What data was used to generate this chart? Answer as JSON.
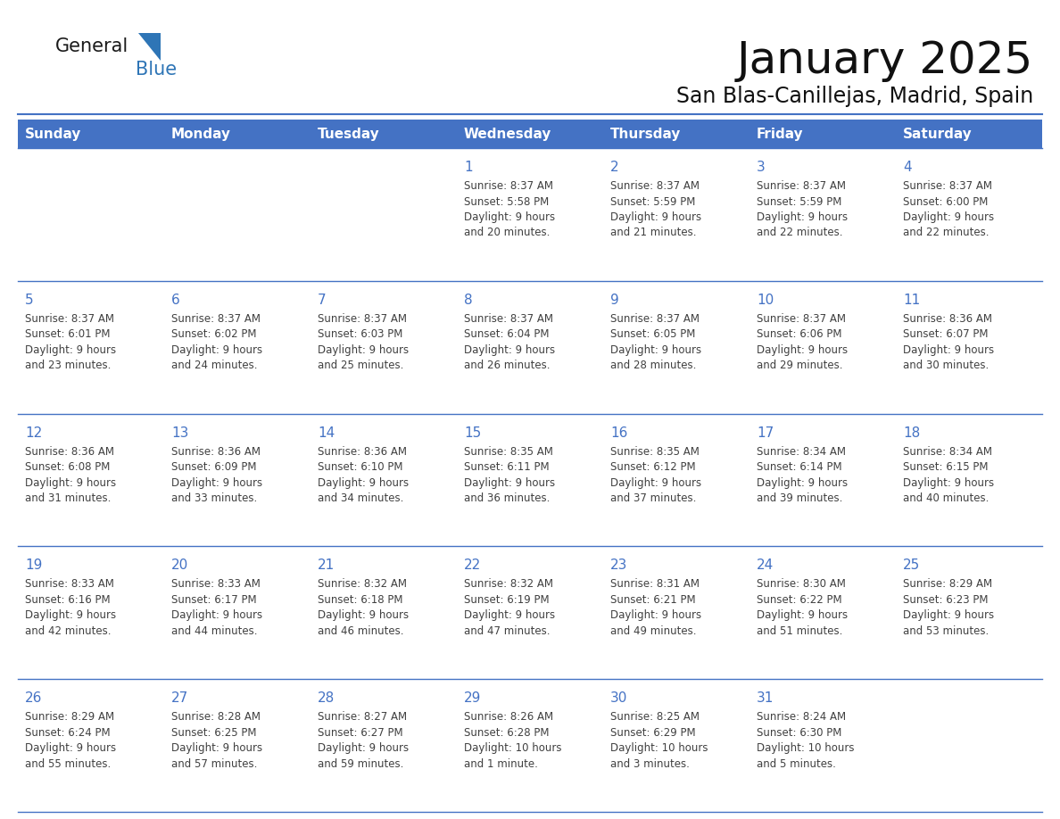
{
  "title": "January 2025",
  "subtitle": "San Blas-Canillejas, Madrid, Spain",
  "days_of_week": [
    "Sunday",
    "Monday",
    "Tuesday",
    "Wednesday",
    "Thursday",
    "Friday",
    "Saturday"
  ],
  "header_bg": "#4472C4",
  "header_text": "#FFFFFF",
  "cell_bg": "#FFFFFF",
  "cell_border": "#4472C4",
  "day_num_color": "#4472C4",
  "text_color": "#404040",
  "logo_general_color": "#1a1a1a",
  "logo_blue_color": "#2E75B6",
  "logo_triangle_color": "#2E75B6",
  "calendar_data": [
    [
      {
        "day": null,
        "sunrise": null,
        "sunset": null,
        "daylight": null
      },
      {
        "day": null,
        "sunrise": null,
        "sunset": null,
        "daylight": null
      },
      {
        "day": null,
        "sunrise": null,
        "sunset": null,
        "daylight": null
      },
      {
        "day": 1,
        "sunrise": "8:37 AM",
        "sunset": "5:58 PM",
        "daylight": "9 hours\nand 20 minutes."
      },
      {
        "day": 2,
        "sunrise": "8:37 AM",
        "sunset": "5:59 PM",
        "daylight": "9 hours\nand 21 minutes."
      },
      {
        "day": 3,
        "sunrise": "8:37 AM",
        "sunset": "5:59 PM",
        "daylight": "9 hours\nand 22 minutes."
      },
      {
        "day": 4,
        "sunrise": "8:37 AM",
        "sunset": "6:00 PM",
        "daylight": "9 hours\nand 22 minutes."
      }
    ],
    [
      {
        "day": 5,
        "sunrise": "8:37 AM",
        "sunset": "6:01 PM",
        "daylight": "9 hours\nand 23 minutes."
      },
      {
        "day": 6,
        "sunrise": "8:37 AM",
        "sunset": "6:02 PM",
        "daylight": "9 hours\nand 24 minutes."
      },
      {
        "day": 7,
        "sunrise": "8:37 AM",
        "sunset": "6:03 PM",
        "daylight": "9 hours\nand 25 minutes."
      },
      {
        "day": 8,
        "sunrise": "8:37 AM",
        "sunset": "6:04 PM",
        "daylight": "9 hours\nand 26 minutes."
      },
      {
        "day": 9,
        "sunrise": "8:37 AM",
        "sunset": "6:05 PM",
        "daylight": "9 hours\nand 28 minutes."
      },
      {
        "day": 10,
        "sunrise": "8:37 AM",
        "sunset": "6:06 PM",
        "daylight": "9 hours\nand 29 minutes."
      },
      {
        "day": 11,
        "sunrise": "8:36 AM",
        "sunset": "6:07 PM",
        "daylight": "9 hours\nand 30 minutes."
      }
    ],
    [
      {
        "day": 12,
        "sunrise": "8:36 AM",
        "sunset": "6:08 PM",
        "daylight": "9 hours\nand 31 minutes."
      },
      {
        "day": 13,
        "sunrise": "8:36 AM",
        "sunset": "6:09 PM",
        "daylight": "9 hours\nand 33 minutes."
      },
      {
        "day": 14,
        "sunrise": "8:36 AM",
        "sunset": "6:10 PM",
        "daylight": "9 hours\nand 34 minutes."
      },
      {
        "day": 15,
        "sunrise": "8:35 AM",
        "sunset": "6:11 PM",
        "daylight": "9 hours\nand 36 minutes."
      },
      {
        "day": 16,
        "sunrise": "8:35 AM",
        "sunset": "6:12 PM",
        "daylight": "9 hours\nand 37 minutes."
      },
      {
        "day": 17,
        "sunrise": "8:34 AM",
        "sunset": "6:14 PM",
        "daylight": "9 hours\nand 39 minutes."
      },
      {
        "day": 18,
        "sunrise": "8:34 AM",
        "sunset": "6:15 PM",
        "daylight": "9 hours\nand 40 minutes."
      }
    ],
    [
      {
        "day": 19,
        "sunrise": "8:33 AM",
        "sunset": "6:16 PM",
        "daylight": "9 hours\nand 42 minutes."
      },
      {
        "day": 20,
        "sunrise": "8:33 AM",
        "sunset": "6:17 PM",
        "daylight": "9 hours\nand 44 minutes."
      },
      {
        "day": 21,
        "sunrise": "8:32 AM",
        "sunset": "6:18 PM",
        "daylight": "9 hours\nand 46 minutes."
      },
      {
        "day": 22,
        "sunrise": "8:32 AM",
        "sunset": "6:19 PM",
        "daylight": "9 hours\nand 47 minutes."
      },
      {
        "day": 23,
        "sunrise": "8:31 AM",
        "sunset": "6:21 PM",
        "daylight": "9 hours\nand 49 minutes."
      },
      {
        "day": 24,
        "sunrise": "8:30 AM",
        "sunset": "6:22 PM",
        "daylight": "9 hours\nand 51 minutes."
      },
      {
        "day": 25,
        "sunrise": "8:29 AM",
        "sunset": "6:23 PM",
        "daylight": "9 hours\nand 53 minutes."
      }
    ],
    [
      {
        "day": 26,
        "sunrise": "8:29 AM",
        "sunset": "6:24 PM",
        "daylight": "9 hours\nand 55 minutes."
      },
      {
        "day": 27,
        "sunrise": "8:28 AM",
        "sunset": "6:25 PM",
        "daylight": "9 hours\nand 57 minutes."
      },
      {
        "day": 28,
        "sunrise": "8:27 AM",
        "sunset": "6:27 PM",
        "daylight": "9 hours\nand 59 minutes."
      },
      {
        "day": 29,
        "sunrise": "8:26 AM",
        "sunset": "6:28 PM",
        "daylight": "10 hours\nand 1 minute."
      },
      {
        "day": 30,
        "sunrise": "8:25 AM",
        "sunset": "6:29 PM",
        "daylight": "10 hours\nand 3 minutes."
      },
      {
        "day": 31,
        "sunrise": "8:24 AM",
        "sunset": "6:30 PM",
        "daylight": "10 hours\nand 5 minutes."
      },
      {
        "day": null,
        "sunrise": null,
        "sunset": null,
        "daylight": null
      }
    ]
  ]
}
